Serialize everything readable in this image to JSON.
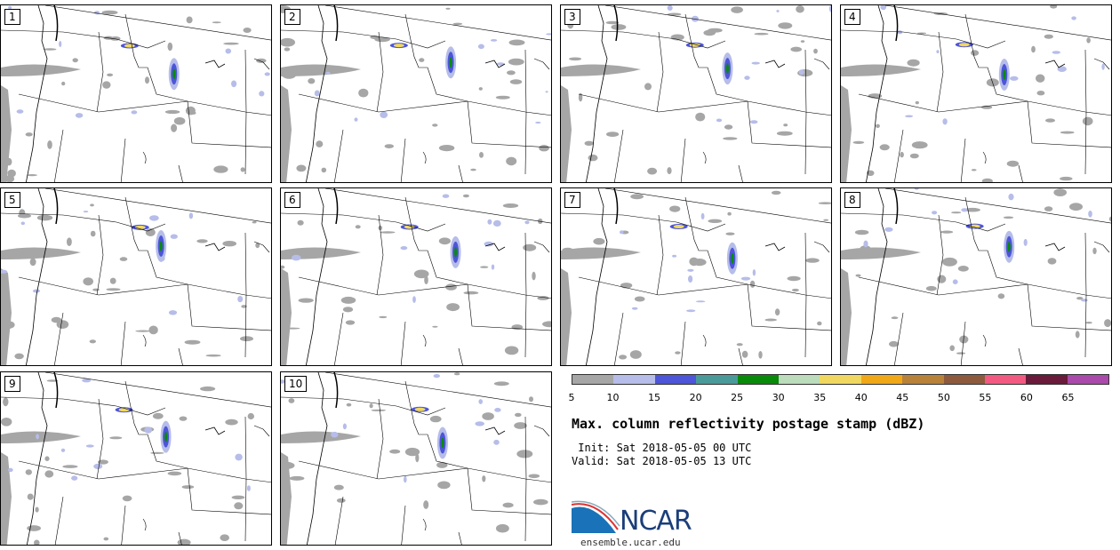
{
  "panels": [
    {
      "label": "1"
    },
    {
      "label": "2"
    },
    {
      "label": "3"
    },
    {
      "label": "4"
    },
    {
      "label": "5"
    },
    {
      "label": "6"
    },
    {
      "label": "7"
    },
    {
      "label": "8"
    },
    {
      "label": "9"
    },
    {
      "label": "10"
    }
  ],
  "colorbar": {
    "colors": [
      "#a6a6a6",
      "#b6bde9",
      "#4d55d8",
      "#4a9a9a",
      "#0a8a0a",
      "#bcdcbc",
      "#f0d860",
      "#f0a818",
      "#b8823a",
      "#8e5a3e",
      "#f25a82",
      "#6a1a3a",
      "#aa4aaa"
    ],
    "ticks": [
      "5",
      "10",
      "15",
      "20",
      "25",
      "30",
      "35",
      "40",
      "45",
      "50",
      "55",
      "60",
      "65"
    ]
  },
  "title": "Max. column reflectivity postage stamp (dBZ)",
  "init": " Init: Sat 2018-05-05 00 UTC",
  "valid": "Valid: Sat 2018-05-05 13 UTC",
  "logo": {
    "name": "NCAR",
    "url": "ensemble.ucar.edu"
  }
}
